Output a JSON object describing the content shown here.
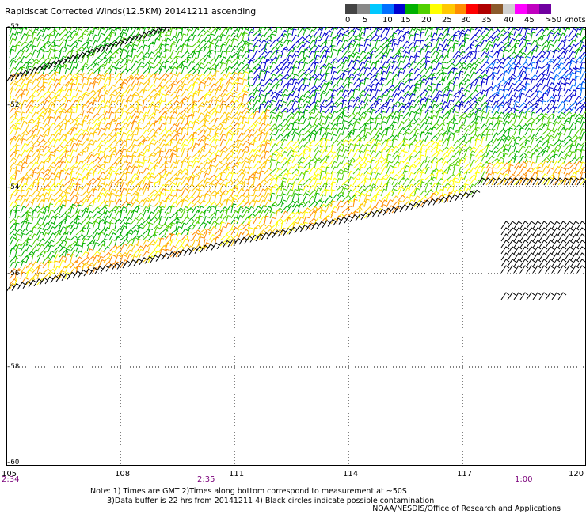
{
  "title": "Rapidscat Corrected Winds(12.5KM) 20141211 ascending",
  "colorbar": {
    "colors": [
      "#444444",
      "#888888",
      "#00c8ff",
      "#0070ff",
      "#0000d0",
      "#00b000",
      "#50d000",
      "#ffff00",
      "#ffc800",
      "#ff8c00",
      "#ff0000",
      "#b00000",
      "#8b5a2b",
      "#d0d0d0",
      "#ff00ff",
      "#c000c0",
      "#7000a0"
    ],
    "labels": [
      "0",
      "5",
      "10",
      "15",
      "20",
      "25",
      "30",
      "35",
      "40",
      "45",
      ">50 knots"
    ]
  },
  "lat_labels": [
    "-52",
    "-52",
    "-54",
    "-56",
    "-58",
    "-60"
  ],
  "lon_labels": [
    "105",
    "108",
    "111",
    "114",
    "117",
    "120"
  ],
  "time_labels": [
    "2:34",
    "2:35",
    "1:00"
  ],
  "notes": {
    "line1": "Note: 1) Times are GMT 2)Times along bottom correspond to measurement at ~50S",
    "line2": "       3)Data buffer is 22 hrs from 20141211 4) Black circles indicate possible contamination"
  },
  "credit": "NOAA/NESDIS/Office of Research and Applications"
}
